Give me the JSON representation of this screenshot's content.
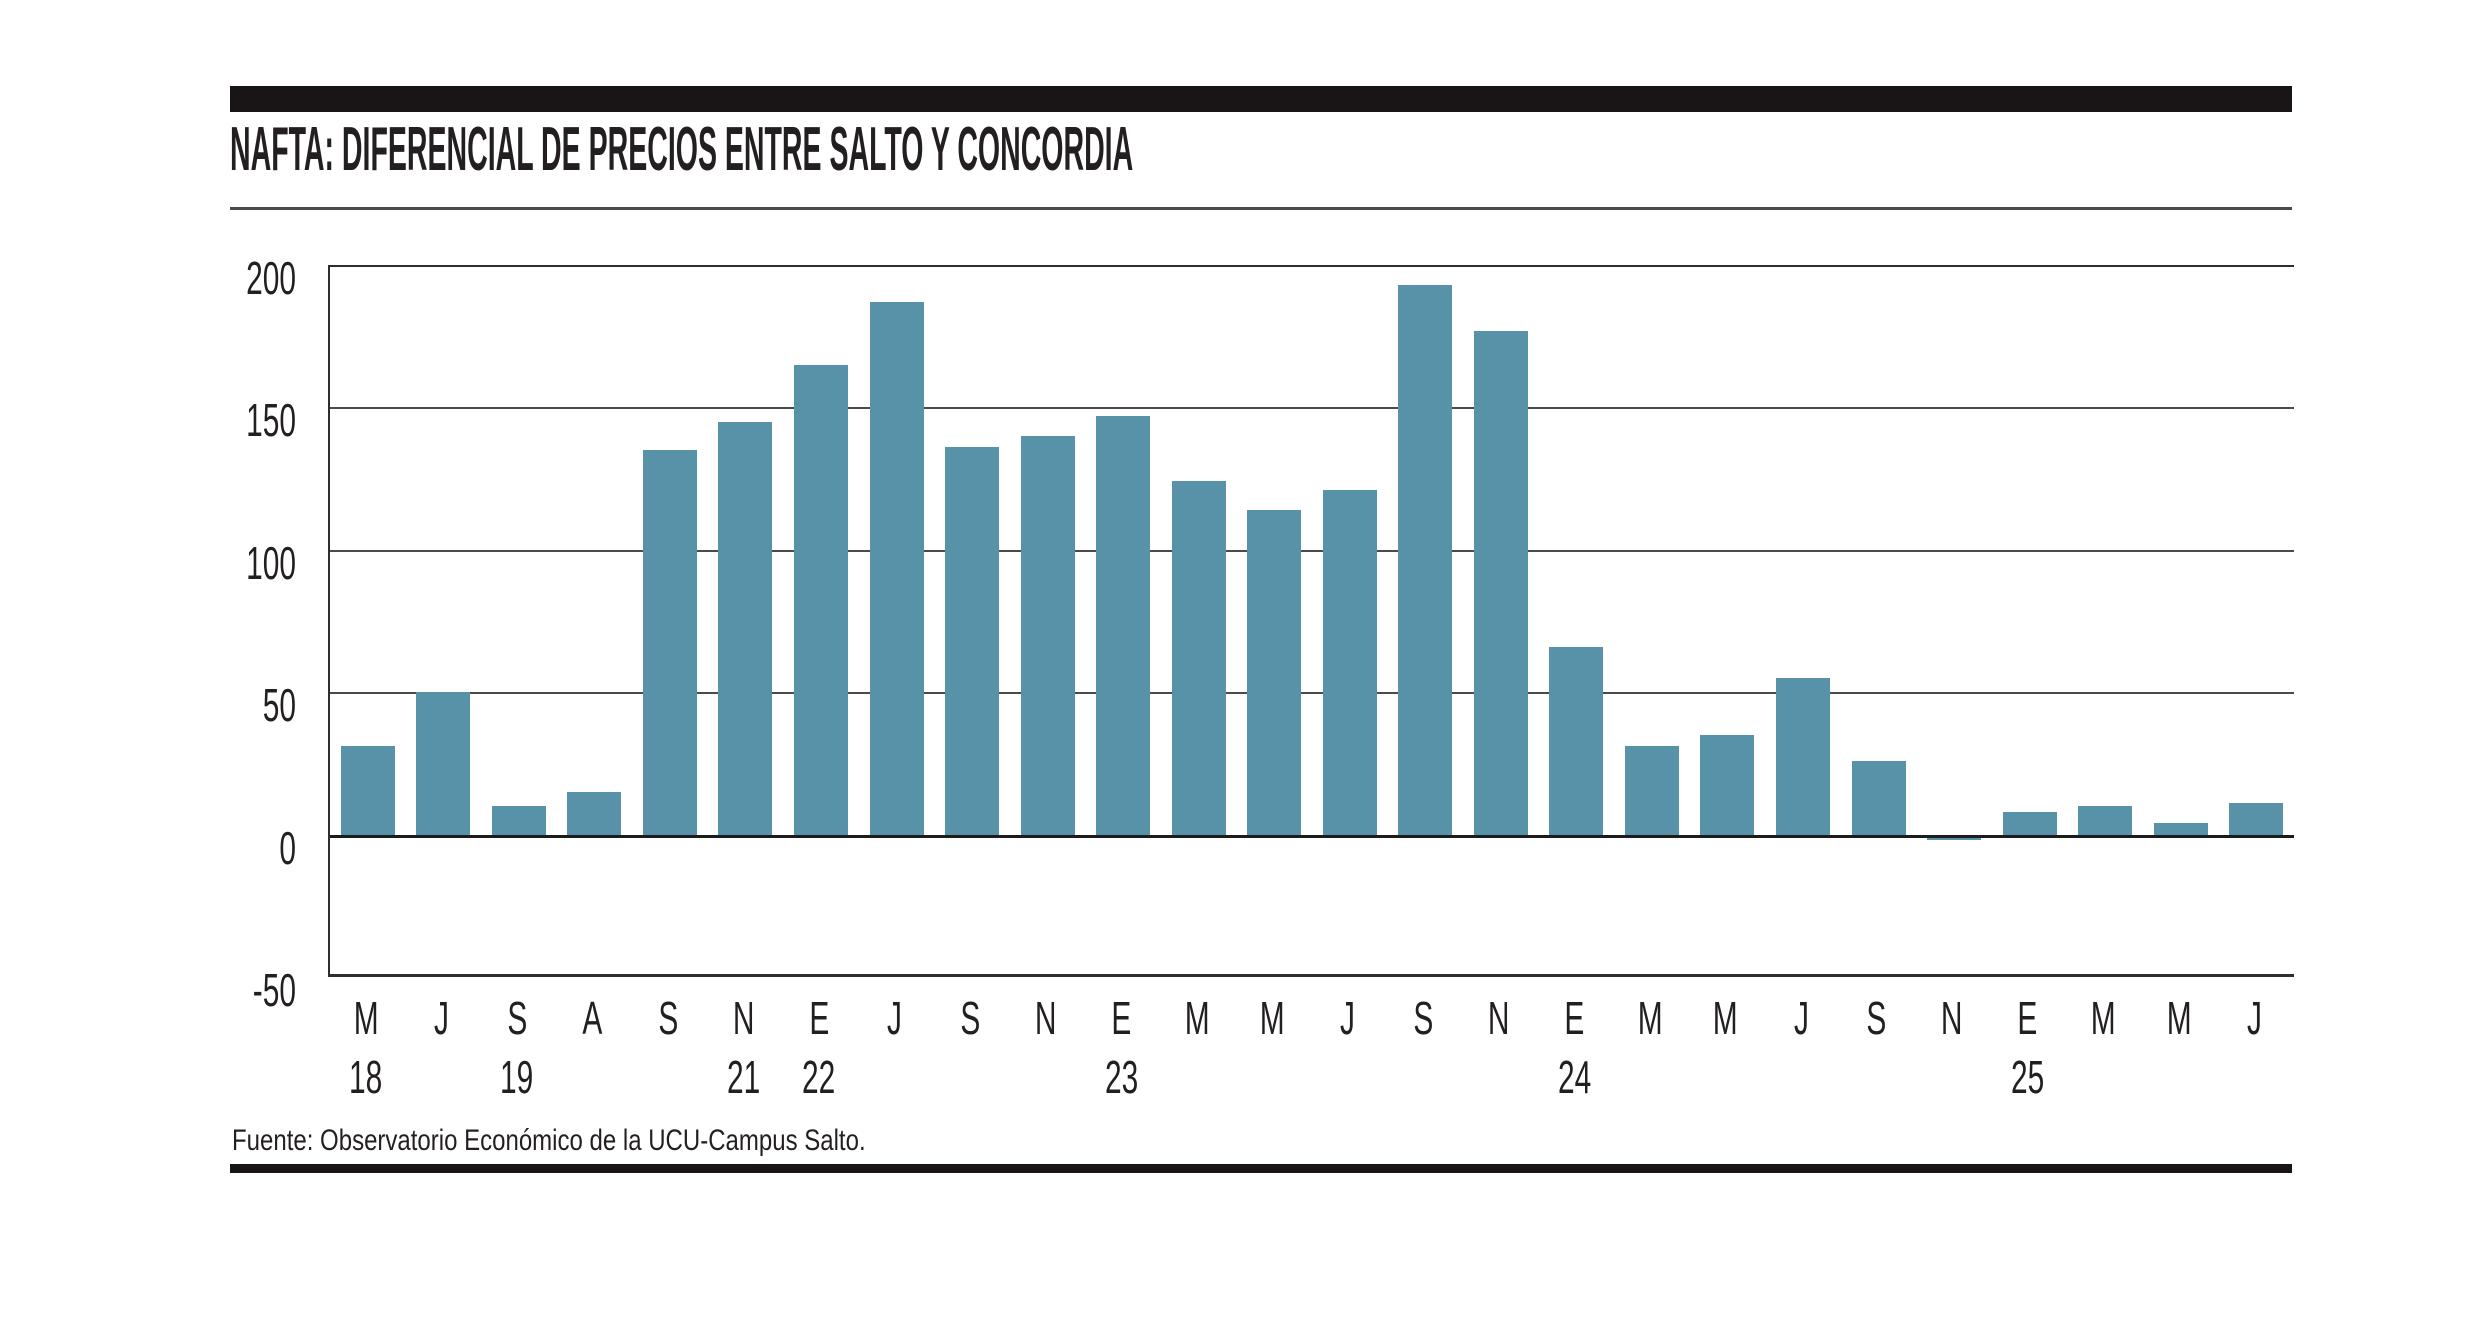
{
  "title": "NAFTA: DIFERENCIAL DE PRECIOS ENTRE SALTO Y CONCORDIA",
  "source_note": "Fuente: Observatorio Económico de la UCU-Campus Salto.",
  "colors": {
    "bar": "#5892a8",
    "gridline": "#4a4a4a",
    "zero_line": "#1c1c1c",
    "axis": "#2e2e2e",
    "text": "#231f20",
    "accent_rule": "#191516"
  },
  "chart_data": {
    "type": "bar",
    "title": "NAFTA: DIFERENCIAL DE PRECIOS ENTRE SALTO Y CONCORDIA",
    "categories": [
      "M",
      "J",
      "S",
      "A",
      "S",
      "N",
      "E",
      "J",
      "S",
      "N",
      "E",
      "M",
      "M",
      "J",
      "S",
      "N",
      "E",
      "M",
      "M",
      "J",
      "S",
      "N",
      "E",
      "M",
      "M",
      "J"
    ],
    "values": [
      31,
      50,
      10,
      15,
      135,
      145,
      165,
      187,
      136,
      140,
      147,
      124,
      114,
      121,
      193,
      177,
      66,
      31,
      35,
      55,
      26,
      -1,
      8,
      10,
      4,
      11
    ],
    "year_labels": [
      {
        "index": 0,
        "label": "18"
      },
      {
        "index": 2,
        "label": "19"
      },
      {
        "index": 5,
        "label": "21"
      },
      {
        "index": 6,
        "label": "22"
      },
      {
        "index": 10,
        "label": "23"
      },
      {
        "index": 16,
        "label": "24"
      },
      {
        "index": 22,
        "label": "25"
      }
    ],
    "yticks": [
      200,
      150,
      100,
      50,
      0,
      -50
    ],
    "ylim": [
      -50,
      200
    ],
    "grid": true,
    "legend": "none",
    "xlabel": "",
    "ylabel": "",
    "source": "Fuente: Observatorio Económico de la UCU-Campus Salto."
  }
}
